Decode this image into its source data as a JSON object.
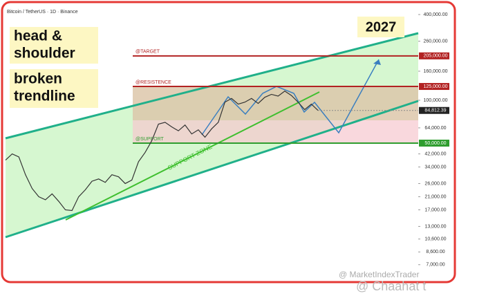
{
  "chart_data": {
    "type": "line",
    "title": "Bitcoin / TetherUS · 1D · Binance",
    "log_scale": true,
    "color": "#333333",
    "values": [
      38000,
      42000,
      40000,
      30000,
      24000,
      21000,
      20000,
      22000,
      19500,
      17000,
      16800,
      21000,
      23500,
      27000,
      28000,
      26500,
      30000,
      29000,
      26000,
      27500,
      37000,
      43000,
      52000,
      68000,
      70000,
      65000,
      61000,
      67000,
      58000,
      62000,
      55000,
      63000,
      70000,
      97000,
      103000,
      94000,
      97000,
      103000,
      95000,
      105000,
      110000,
      107000,
      116000,
      108000,
      97000,
      86000,
      94000,
      84812.39
    ],
    "last_value_label": "84,812.39",
    "ylim": [
      5460,
      484000
    ],
    "yticks": [
      {
        "value": 400000,
        "label": "400,000.00"
      },
      {
        "value": 260000,
        "label": "260,000.00"
      },
      {
        "value": 160000,
        "label": "160,000.00"
      },
      {
        "value": 100000,
        "label": "100,000.00"
      },
      {
        "value": 64000,
        "label": "64,000.00"
      },
      {
        "value": 42000,
        "label": "42,000.00"
      },
      {
        "value": 34000,
        "label": "34,000.00"
      },
      {
        "value": 26000,
        "label": "26,000.00"
      },
      {
        "value": 21000,
        "label": "21,000.00"
      },
      {
        "value": 17000,
        "label": "17,000.00"
      },
      {
        "value": 13000,
        "label": "13,000.00"
      },
      {
        "value": 10600,
        "label": "10,600.00"
      },
      {
        "value": 8600,
        "label": "8,600.00"
      },
      {
        "value": 7000,
        "label": "7,000.00"
      }
    ],
    "levels": [
      {
        "name": "@TARGET",
        "value": 205000,
        "label": "205,000.00",
        "color": "#b22222"
      },
      {
        "name": "@RESISTENCE",
        "value": 125000,
        "label": "125,000.00",
        "color": "#b22222"
      },
      {
        "name": "@SUPPORT",
        "value": 50000,
        "label": "50,000.00",
        "color": "#2e9d2e"
      }
    ],
    "annotations": [
      "head &",
      "shoulder",
      "broken",
      "trendline",
      "2027",
      "SUPPORT ZONE"
    ],
    "watermarks": [
      "@ MarketIndexTrader",
      "@ Chaahat t"
    ]
  }
}
